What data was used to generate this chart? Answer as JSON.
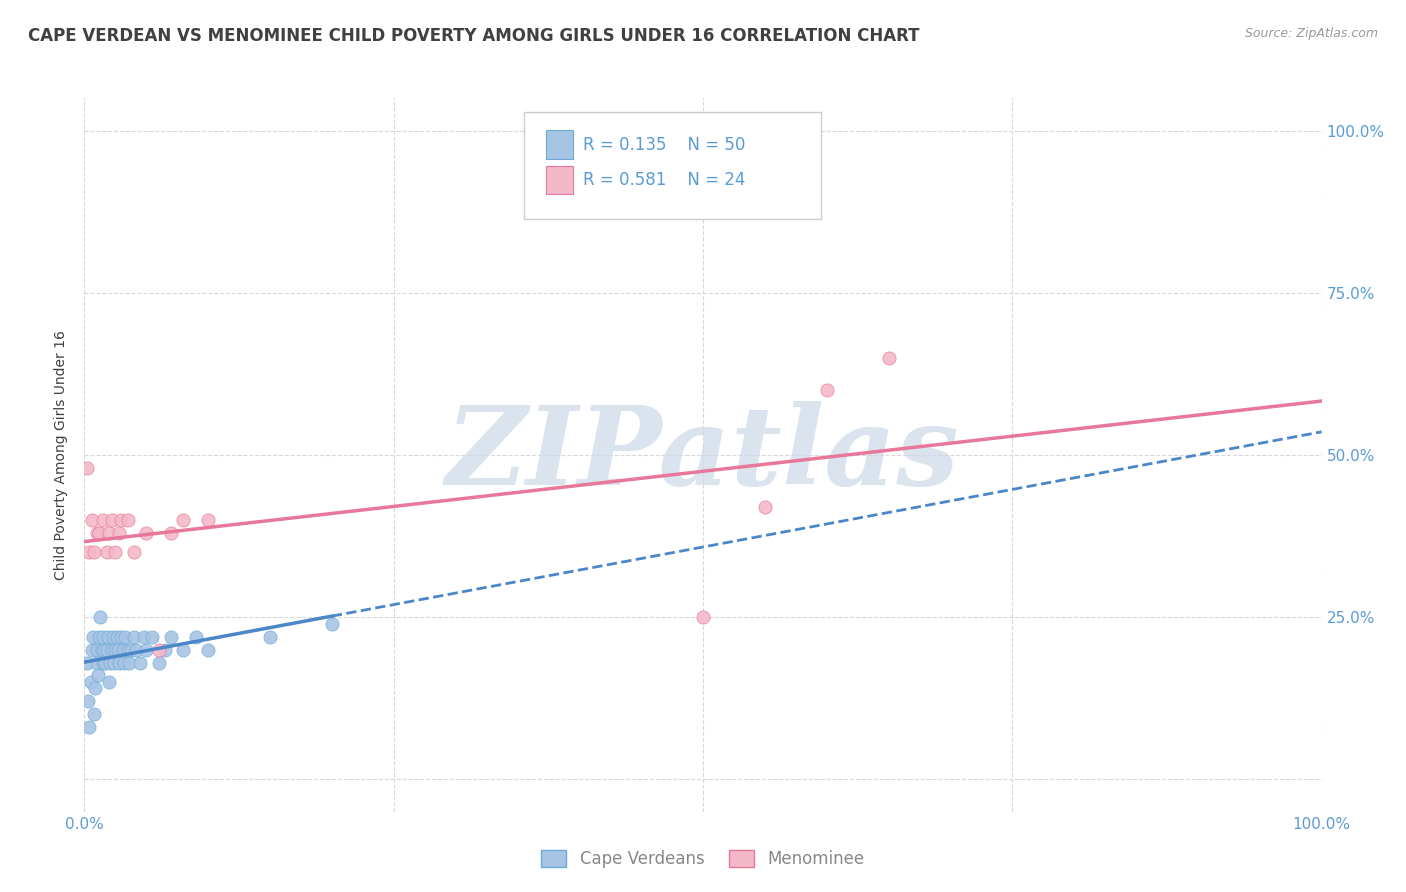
{
  "title": "CAPE VERDEAN VS MENOMINEE CHILD POVERTY AMONG GIRLS UNDER 16 CORRELATION CHART",
  "source": "Source: ZipAtlas.com",
  "ylabel": "Child Poverty Among Girls Under 16",
  "watermark": "ZIPatlas",
  "cape_verdean": {
    "label": "Cape Verdeans",
    "R": 0.135,
    "N": 50,
    "scatter_color": "#a8c4e5",
    "edge_color": "#6aaad4",
    "line_color": "#4a86c8",
    "x": [
      0.002,
      0.003,
      0.004,
      0.005,
      0.006,
      0.007,
      0.008,
      0.009,
      0.01,
      0.01,
      0.011,
      0.012,
      0.013,
      0.014,
      0.015,
      0.015,
      0.016,
      0.017,
      0.018,
      0.019,
      0.02,
      0.021,
      0.022,
      0.023,
      0.024,
      0.025,
      0.026,
      0.027,
      0.028,
      0.03,
      0.031,
      0.032,
      0.033,
      0.035,
      0.036,
      0.038,
      0.04,
      0.042,
      0.045,
      0.048,
      0.05,
      0.055,
      0.06,
      0.065,
      0.07,
      0.08,
      0.09,
      0.1,
      0.15,
      0.2
    ],
    "y": [
      0.18,
      0.12,
      0.08,
      0.15,
      0.2,
      0.22,
      0.1,
      0.14,
      0.2,
      0.18,
      0.16,
      0.22,
      0.25,
      0.2,
      0.18,
      0.22,
      0.2,
      0.18,
      0.2,
      0.22,
      0.15,
      0.18,
      0.2,
      0.22,
      0.18,
      0.2,
      0.22,
      0.2,
      0.18,
      0.22,
      0.2,
      0.18,
      0.22,
      0.2,
      0.18,
      0.2,
      0.22,
      0.2,
      0.18,
      0.22,
      0.2,
      0.22,
      0.18,
      0.2,
      0.22,
      0.2,
      0.22,
      0.2,
      0.22,
      0.24
    ]
  },
  "menominee": {
    "label": "Menominee",
    "R": 0.581,
    "N": 24,
    "scatter_color": "#f4b8c8",
    "edge_color": "#e8789a",
    "line_color": "#e8789a",
    "x": [
      0.002,
      0.004,
      0.006,
      0.008,
      0.01,
      0.012,
      0.015,
      0.018,
      0.02,
      0.022,
      0.025,
      0.028,
      0.03,
      0.035,
      0.04,
      0.05,
      0.06,
      0.07,
      0.08,
      0.1,
      0.5,
      0.55,
      0.6,
      0.65
    ],
    "y": [
      0.48,
      0.35,
      0.4,
      0.35,
      0.38,
      0.38,
      0.4,
      0.35,
      0.38,
      0.4,
      0.35,
      0.38,
      0.4,
      0.4,
      0.35,
      0.38,
      0.2,
      0.38,
      0.4,
      0.4,
      0.25,
      0.42,
      0.6,
      0.65
    ]
  },
  "xlim": [
    0.0,
    1.0
  ],
  "ylim": [
    -0.05,
    1.05
  ],
  "background_color": "#ffffff",
  "grid_color": "#d8d8d8",
  "title_color": "#404040",
  "tick_label_color": "#5b9bd5",
  "watermark_color": "#ccd8e8"
}
